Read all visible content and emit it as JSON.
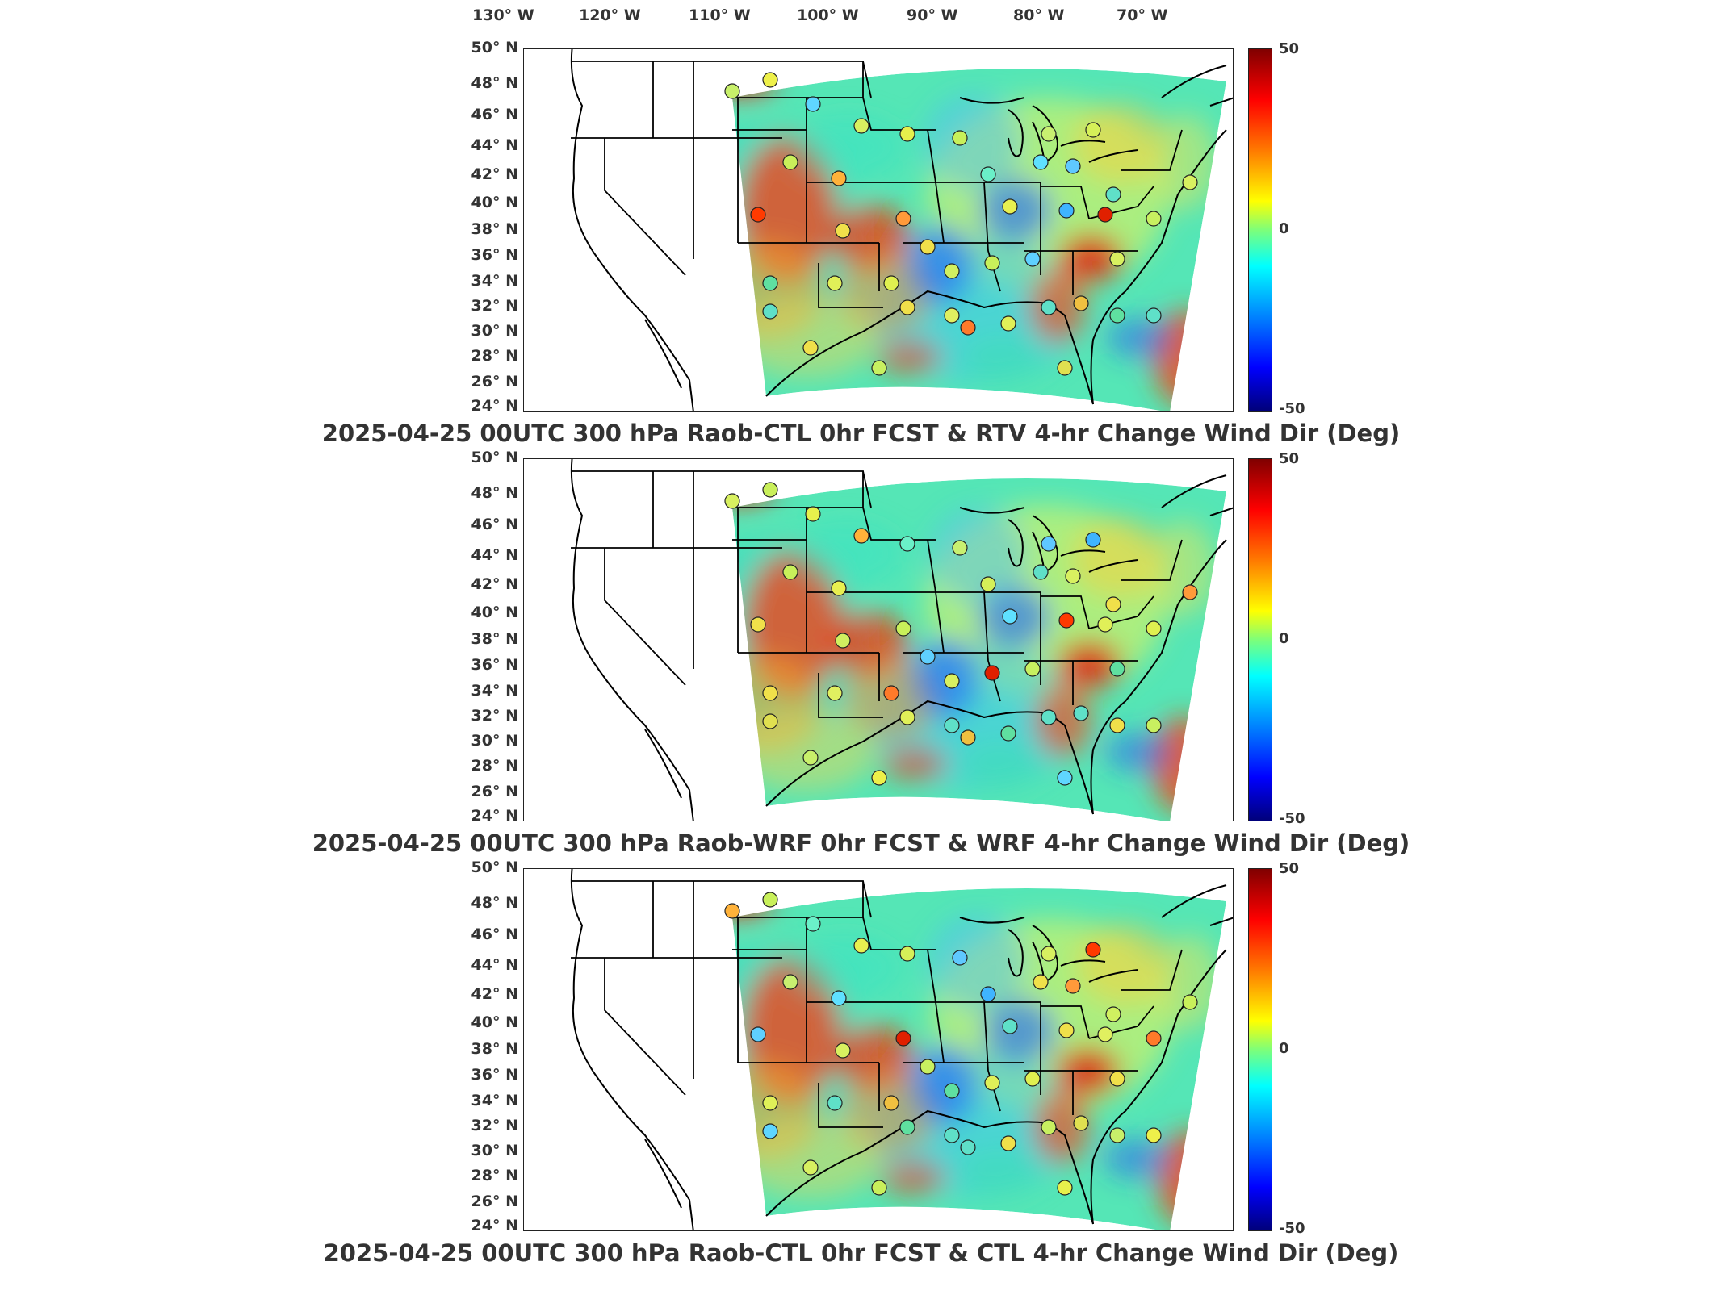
{
  "lon_labels": [
    "130° W",
    "120° W",
    "110° W",
    "100° W",
    "90° W",
    "80° W",
    "70° W"
  ],
  "lat_labels": [
    "50° N",
    "48° N",
    "46° N",
    "44° N",
    "42° N",
    "40° N",
    "38° N",
    "36° N",
    "34° N",
    "32° N",
    "30° N",
    "28° N",
    "26° N",
    "24° N"
  ],
  "colorbar": {
    "max": "50",
    "mid": "0",
    "min": "-50",
    "range": [
      -50,
      50
    ],
    "colors": [
      "#800000",
      "#ff0000",
      "#ff7a00",
      "#ffff00",
      "#7dff7a",
      "#00ffff",
      "#0070ff",
      "#0000ff",
      "#00007a"
    ]
  },
  "panels": [
    {
      "title": "2025-04-25 00UTC 300 hPa Raob-CTL 0hr FCST & RTV 4-hr Change Wind Dir (Deg)"
    },
    {
      "title": "2025-04-25 00UTC 300 hPa Raob-WRF 0hr FCST & WRF 4-hr Change Wind Dir (Deg)"
    },
    {
      "title": "2025-04-25 00UTC 300 hPa Raob-CTL 0hr FCST & CTL 4-hr Change Wind Dir (Deg)"
    }
  ],
  "field": {
    "projection": "Lambert conformal",
    "extent": {
      "lon": [
        -130,
        -65
      ],
      "lat": [
        24,
        50
      ]
    },
    "raob_stations": {
      "marker": "open-circle",
      "fill_by": "value",
      "count": 42
    }
  }
}
